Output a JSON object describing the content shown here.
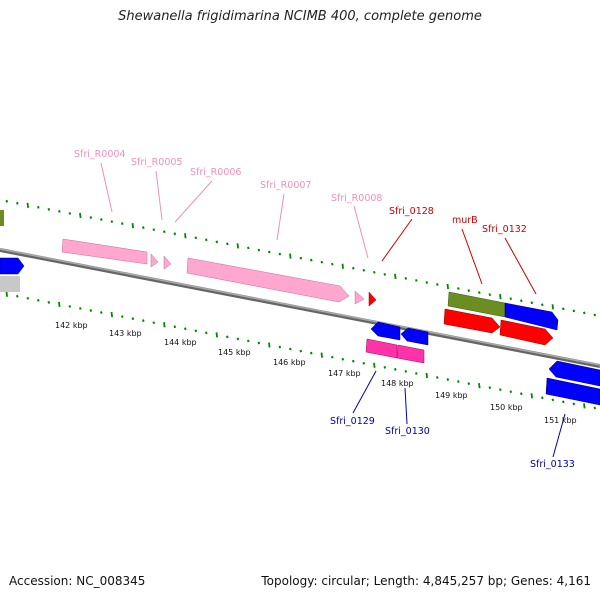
{
  "title": "Shewanella frigidimarina NCIMB 400, complete genome",
  "footer": {
    "accession": "Accession: NC_008345",
    "topology": "Topology: circular; Length: 4,845,257 bp; Genes: 4,161"
  },
  "colors": {
    "rna_label": "#f090b8",
    "forward_label": "#cc0000",
    "reverse_label": "#0000aa",
    "rna_feature": "#ff99cc",
    "forward_feature": "#ff0000",
    "reverse_feature": "#0000ff",
    "highlight_feature": "#6b8e23",
    "tick_color": "#008800",
    "backbone": "#777777"
  },
  "scale_labels": [
    "142 kbp",
    "143 kbp",
    "144 kbp",
    "145 kbp",
    "146 kbp",
    "147 kbp",
    "148 kbp",
    "149 kbp",
    "150 kbp",
    "151 kbp"
  ],
  "gene_labels": [
    {
      "text": "Sfri_R0004",
      "strand": "rna"
    },
    {
      "text": "Sfri_R0005",
      "strand": "rna"
    },
    {
      "text": "Sfri_R0006",
      "strand": "rna"
    },
    {
      "text": "Sfri_R0007",
      "strand": "rna"
    },
    {
      "text": "Sfri_R0008",
      "strand": "rna"
    },
    {
      "text": "Sfri_0128",
      "strand": "forward"
    },
    {
      "text": "murB",
      "strand": "forward"
    },
    {
      "text": "Sfri_0132",
      "strand": "forward"
    },
    {
      "text": "Sfri_0129",
      "strand": "reverse"
    },
    {
      "text": "Sfri_0130",
      "strand": "reverse"
    },
    {
      "text": "Sfri_0133",
      "strand": "reverse"
    }
  ]
}
